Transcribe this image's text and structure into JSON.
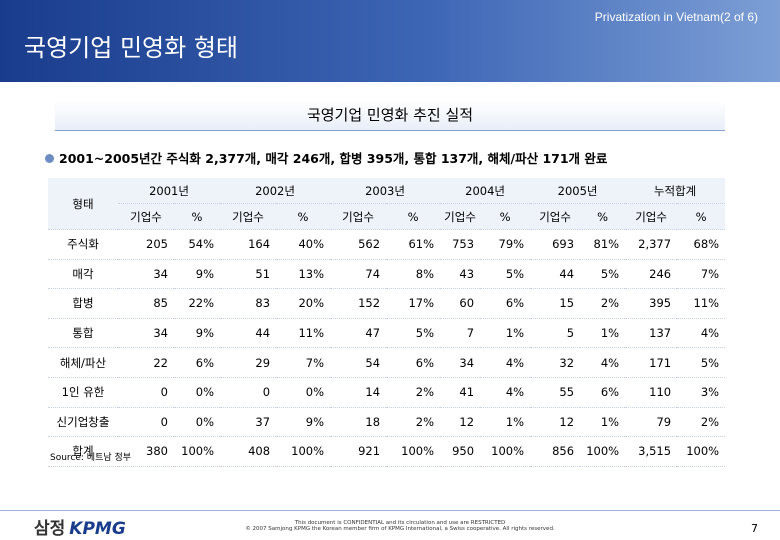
{
  "header": {
    "title": "국영기업 민영화 형태",
    "section": "Privatization in Vietnam(2 of 6)"
  },
  "subtitle": "국영기업 민영화 추진 실적",
  "bullet": "2001~2005년간 주식화 2,377개, 매각 246개, 합병 395개, 통합 137개, 해체/파산 171개 완료",
  "table": {
    "corner": "형태",
    "groups": [
      "2001년",
      "2002년",
      "2003년",
      "2004년",
      "2005년",
      "누적합계"
    ],
    "subheaders": [
      "기업수",
      "%",
      "기업수",
      "%",
      "기업수",
      "%",
      "기업수",
      "%",
      "기업수",
      "%",
      "기업수",
      "%"
    ],
    "rows": [
      [
        "주식화",
        "205",
        "54%",
        "164",
        "40%",
        "562",
        "61%",
        "753",
        "79%",
        "693",
        "81%",
        "2,377",
        "68%"
      ],
      [
        "매각",
        "34",
        "9%",
        "51",
        "13%",
        "74",
        "8%",
        "43",
        "5%",
        "44",
        "5%",
        "246",
        "7%"
      ],
      [
        "합병",
        "85",
        "22%",
        "83",
        "20%",
        "152",
        "17%",
        "60",
        "6%",
        "15",
        "2%",
        "395",
        "11%"
      ],
      [
        "통합",
        "34",
        "9%",
        "44",
        "11%",
        "47",
        "5%",
        "7",
        "1%",
        "5",
        "1%",
        "137",
        "4%"
      ],
      [
        "해체/파산",
        "22",
        "6%",
        "29",
        "7%",
        "54",
        "6%",
        "34",
        "4%",
        "32",
        "4%",
        "171",
        "5%"
      ],
      [
        "1인 유한",
        "0",
        "0%",
        "0",
        "0%",
        "14",
        "2%",
        "41",
        "4%",
        "55",
        "6%",
        "110",
        "3%"
      ],
      [
        "신기업창출",
        "0",
        "0%",
        "37",
        "9%",
        "18",
        "2%",
        "12",
        "1%",
        "12",
        "1%",
        "79",
        "2%"
      ],
      [
        "합계",
        "380",
        "100%",
        "408",
        "100%",
        "921",
        "100%",
        "950",
        "100%",
        "856",
        "100%",
        "3,515",
        "100%"
      ]
    ]
  },
  "source": "Source: 베트남 정부",
  "footer": {
    "logo_ko": "삼정",
    "logo_en": "KPMG",
    "notice": "This document is CONFIDENTIAL and its circulation and use are RESTRICTED",
    "copyright": "© 2007 Samjong KPMG the Korean member firm of KPMG International, a Swiss cooperative. All rights reserved.",
    "page": "7"
  }
}
